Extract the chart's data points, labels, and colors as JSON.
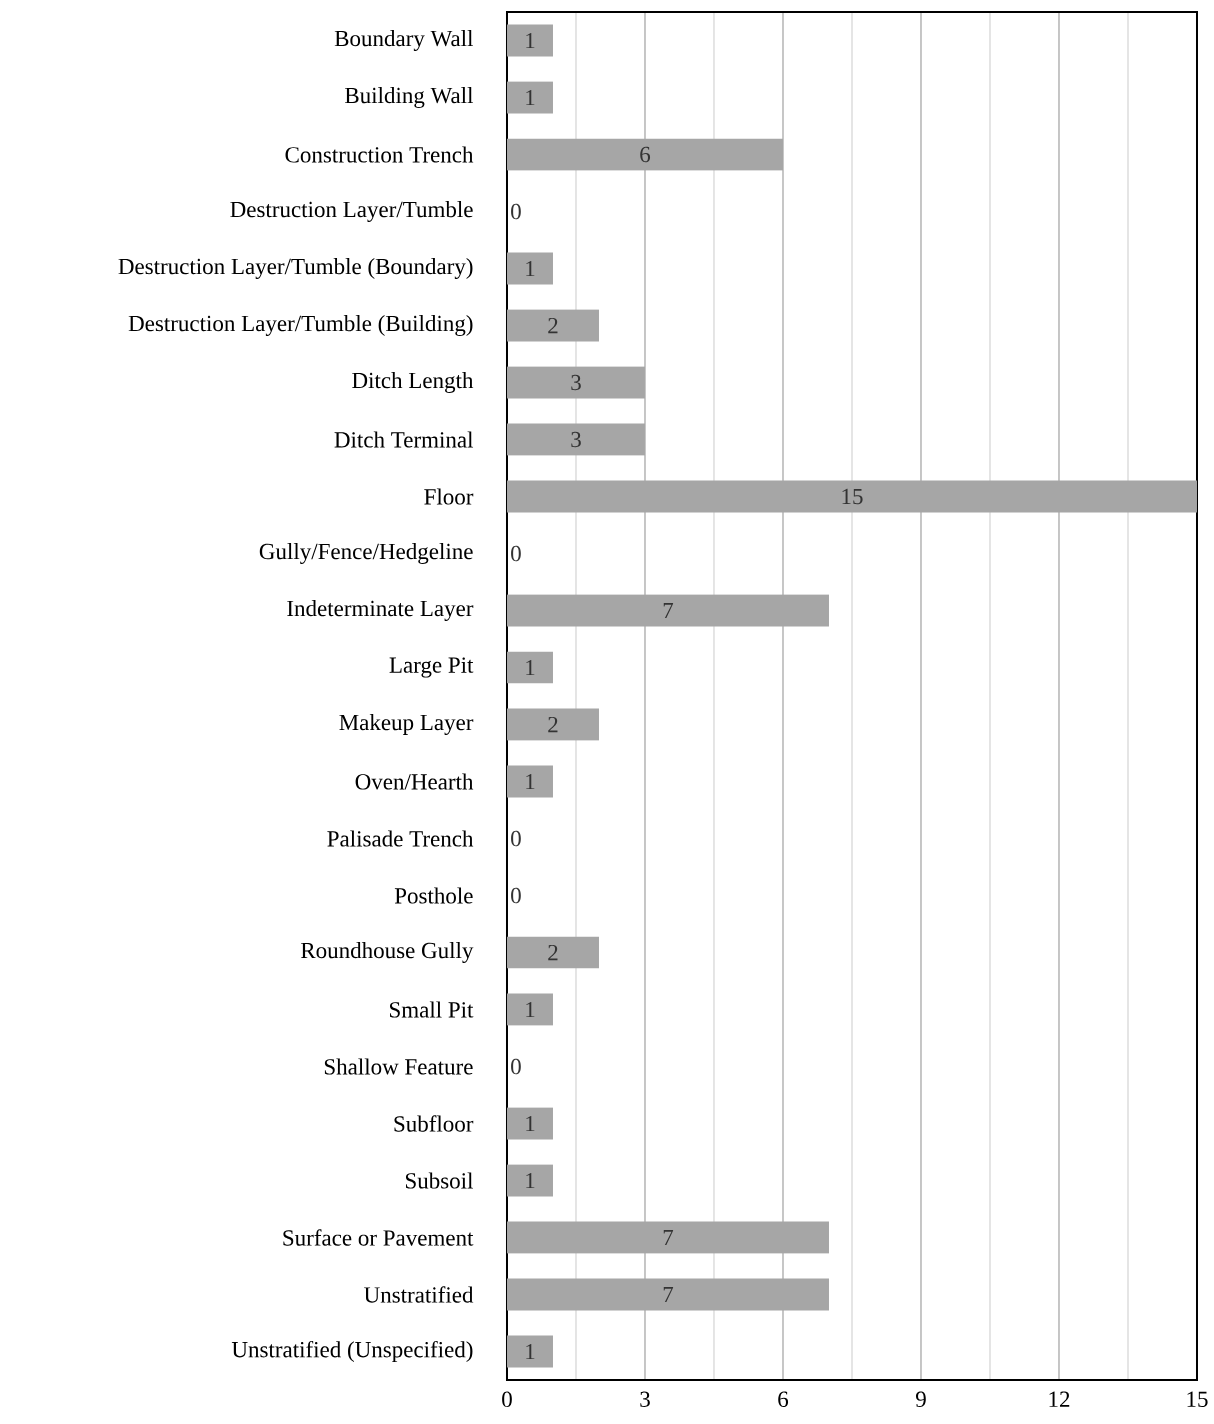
{
  "chart_data": {
    "type": "bar",
    "orientation": "horizontal",
    "categories": [
      "Boundary Wall",
      "Building Wall",
      "Construction Trench",
      "Destruction Layer/Tumble",
      "Destruction Layer/Tumble (Boundary)",
      "Destruction Layer/Tumble (Building)",
      "Ditch Length",
      "Ditch Terminal",
      "Floor",
      "Gully/Fence/Hedgeline",
      "Indeterminate Layer",
      "Large Pit",
      "Makeup Layer",
      "Oven/Hearth",
      "Palisade Trench",
      "Posthole",
      "Roundhouse Gully",
      "Small Pit",
      "Shallow Feature",
      "Subfloor",
      "Subsoil",
      "Surface or Pavement",
      "Unstratified",
      "Unstratified (Unspecified)"
    ],
    "values": [
      1,
      1,
      6,
      0,
      1,
      2,
      3,
      3,
      15,
      0,
      7,
      1,
      2,
      1,
      0,
      0,
      2,
      1,
      0,
      1,
      1,
      7,
      7,
      1
    ],
    "color": "#a6a6a6",
    "xlim": [
      0,
      15
    ],
    "xticks": [
      0,
      {
        "value": 1.5,
        "label": null
      },
      3,
      {
        "value": 4.5,
        "label": null
      },
      6,
      {
        "value": 7.5,
        "label": null
      },
      9,
      {
        "value": 10.5,
        "label": null
      },
      12,
      {
        "value": 13.5,
        "label": null
      },
      15
    ],
    "grid": "x",
    "data_labels": true
  }
}
